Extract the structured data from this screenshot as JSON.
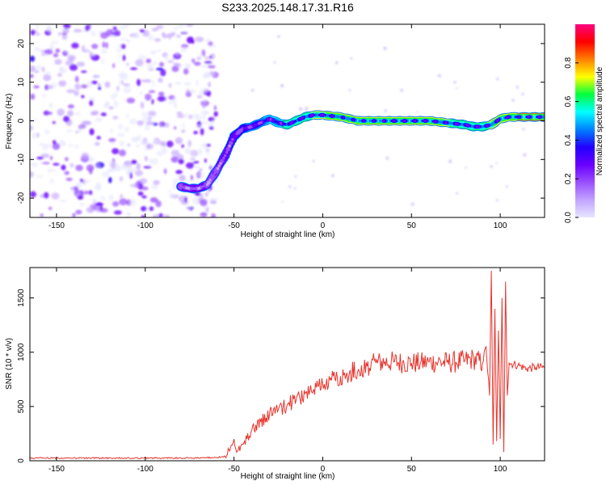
{
  "title": "S233.2025.148.17.31.R16",
  "chart_data": [
    {
      "type": "heatmap",
      "xlabel": "Height of straight line (km)",
      "ylabel": "Frequency (Hz)",
      "xlim": [
        -165,
        125
      ],
      "ylim": [
        -25,
        25
      ],
      "xticks": [
        -150,
        -100,
        -50,
        0,
        50,
        100
      ],
      "yticks": [
        -20,
        -10,
        0,
        10,
        20
      ],
      "colormap": [
        "#e6e6ff",
        "#c2a3ff",
        "#9a4fff",
        "#6a00ff",
        "#2200ff",
        "#0080ff",
        "#00ffff",
        "#00ff40",
        "#ffff00",
        "#ff8000",
        "#ff0000",
        "#ff0080"
      ],
      "colorbar": {
        "label": "Normalized spectral amplitude",
        "range": [
          0,
          1
        ],
        "ticks": [
          "0.0",
          "0.2",
          "0.4",
          "0.6",
          "0.8"
        ]
      },
      "noise_region_x": [
        -165,
        -60
      ],
      "ridge": {
        "x": [
          -80,
          -75,
          -70,
          -65,
          -60,
          -55,
          -50,
          -45,
          -40,
          -35,
          -30,
          -25,
          -20,
          -15,
          -10,
          -5,
          0,
          10,
          20,
          30,
          40,
          50,
          60,
          70,
          80,
          85,
          90,
          95,
          100,
          105,
          110,
          115,
          125
        ],
        "y": [
          -17,
          -17.5,
          -17.5,
          -16.5,
          -13,
          -9,
          -4,
          -2,
          -1.5,
          -0.5,
          0.5,
          -0.5,
          -1,
          0,
          1,
          1.5,
          1.5,
          1,
          0,
          0,
          0,
          0,
          0,
          -0.5,
          -1,
          -1.5,
          -1.5,
          -1,
          0.5,
          1,
          1,
          1,
          1
        ],
        "level": [
          0.3,
          0.35,
          0.35,
          0.3,
          0.3,
          0.35,
          0.4,
          0.45,
          0.5,
          0.55,
          0.6,
          0.65,
          0.7,
          0.7,
          0.75,
          0.8,
          0.8,
          0.85,
          0.85,
          0.85,
          0.85,
          0.85,
          0.85,
          0.8,
          0.75,
          0.75,
          0.75,
          0.8,
          0.85,
          0.85,
          0.9,
          0.9,
          0.9
        ]
      }
    },
    {
      "type": "line",
      "xlabel": "Height of straight line (km)",
      "ylabel": "SNR (10 * v/v)",
      "xlim": [
        -165,
        125
      ],
      "ylim": [
        0,
        1780
      ],
      "xticks": [
        -150,
        -100,
        -50,
        0,
        50,
        100
      ],
      "yticks": [
        0,
        500,
        1000,
        1500
      ],
      "color": "#e8342d",
      "x": [
        -165,
        -150,
        -125,
        -100,
        -75,
        -60,
        -55,
        -52,
        -50,
        -48,
        -45,
        -40,
        -35,
        -30,
        -25,
        -20,
        -15,
        -10,
        -5,
        0,
        5,
        10,
        15,
        20,
        25,
        30,
        35,
        40,
        45,
        50,
        55,
        60,
        65,
        70,
        75,
        80,
        85,
        90,
        92,
        94,
        95,
        96,
        97,
        98,
        99,
        100,
        101,
        102,
        103,
        104,
        105,
        110,
        115,
        120,
        125
      ],
      "y": [
        25,
        25,
        25,
        25,
        25,
        30,
        40,
        120,
        200,
        90,
        150,
        280,
        360,
        420,
        470,
        520,
        560,
        620,
        660,
        700,
        740,
        780,
        810,
        840,
        870,
        900,
        910,
        910,
        905,
        900,
        900,
        910,
        910,
        905,
        910,
        920,
        940,
        900,
        1050,
        600,
        1750,
        150,
        1400,
        180,
        1200,
        200,
        1500,
        80,
        1650,
        600,
        900,
        880,
        850,
        860,
        860
      ]
    }
  ]
}
